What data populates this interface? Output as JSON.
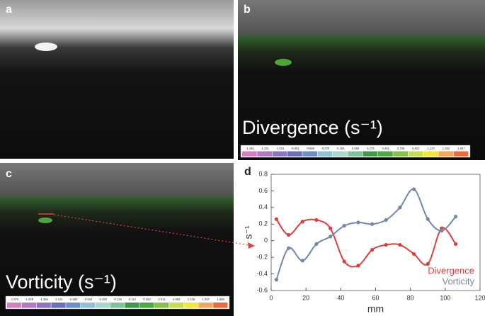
{
  "panels": [
    {
      "label": "a"
    },
    {
      "label": "b",
      "title": "Divergence (s⁻¹)",
      "colorbar": [
        "-1.446",
        "-1.231",
        "-1.016",
        "-0.801",
        "-0.586",
        "-0.370",
        "-0.155",
        "0.060",
        "0.276",
        "0.491",
        "0.706",
        "0.922",
        "1.137",
        "1.352",
        "1.567"
      ]
    },
    {
      "label": "c",
      "title": "Vorticity (s⁻¹)",
      "colorbar": [
        "-1.876",
        "-1.628",
        "-1.380",
        "-1.131",
        "-0.882",
        "-0.633",
        "-0.384",
        "-0.136",
        "0.113",
        "0.362",
        "0.611",
        "0.859",
        "1.108",
        "1.357",
        "1.606"
      ]
    }
  ],
  "chart_data": {
    "type": "line",
    "label": "d",
    "xlabel": "mm",
    "ylabel": "s⁻¹",
    "x": [
      3,
      10,
      18,
      26,
      34,
      42,
      50,
      58,
      66,
      74,
      82,
      90,
      98,
      106
    ],
    "series": [
      {
        "name": "Divergence",
        "color": "#d9403a",
        "values": [
          0.26,
          0.07,
          0.23,
          0.25,
          0.15,
          -0.25,
          -0.3,
          -0.11,
          -0.05,
          -0.05,
          -0.16,
          -0.28,
          0.15,
          -0.04
        ]
      },
      {
        "name": "Vorticity",
        "color": "#7388a8",
        "values": [
          -0.47,
          -0.09,
          -0.24,
          -0.04,
          0.05,
          0.18,
          0.22,
          0.2,
          0.25,
          0.4,
          0.62,
          0.26,
          0.12,
          0.29
        ]
      }
    ],
    "xlim": [
      0,
      120
    ],
    "xticks": [
      0,
      20,
      40,
      60,
      80,
      100,
      120
    ],
    "ylim": [
      -0.6,
      0.8
    ],
    "yticks": [
      -0.6,
      -0.4,
      -0.2,
      0,
      0.2,
      0.4,
      0.6,
      0.8
    ],
    "legend": "lower right"
  }
}
